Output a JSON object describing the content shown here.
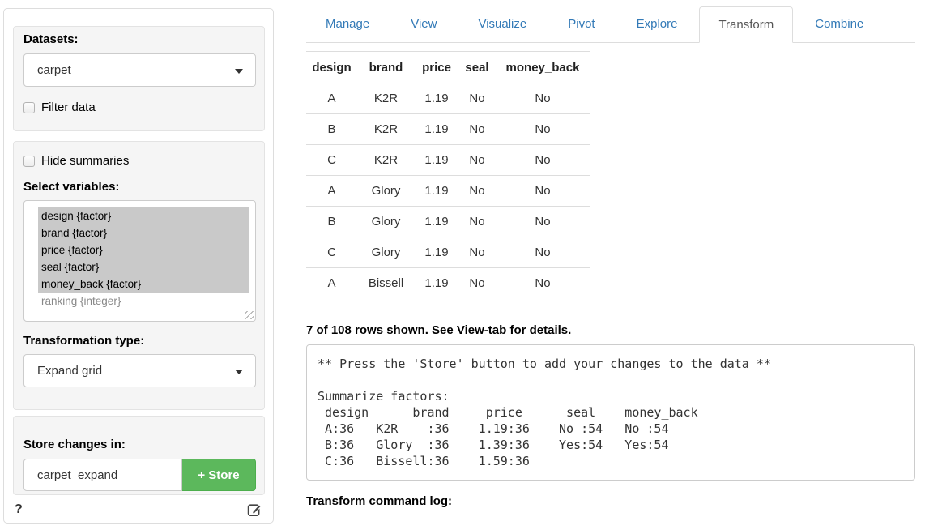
{
  "colors": {
    "accent": "#337ab7",
    "active_tab_text": "#555555",
    "success_bg": "#5cb85c",
    "success_border": "#4cae4c",
    "selection_bg": "#c9c9c9",
    "well_bg": "#f5f5f5"
  },
  "sidebar": {
    "datasets_label": "Datasets:",
    "dataset_value": "carpet",
    "filter_checkbox_label": "Filter data",
    "hide_summaries_label": "Hide summaries",
    "select_variables_label": "Select variables:",
    "variables": [
      {
        "label": "design {factor}",
        "selected": true
      },
      {
        "label": "brand {factor}",
        "selected": true
      },
      {
        "label": "price {factor}",
        "selected": true
      },
      {
        "label": "seal {factor}",
        "selected": true
      },
      {
        "label": "money_back {factor}",
        "selected": true
      },
      {
        "label": "ranking {integer}",
        "selected": false
      }
    ],
    "transformation_label": "Transformation type:",
    "transformation_value": "Expand grid",
    "store_label": "Store changes in:",
    "store_input_value": "carpet_expand",
    "store_button_plus": "+",
    "store_button_label": "Store",
    "help_label": "?"
  },
  "tabs": [
    {
      "label": "Manage",
      "active": false
    },
    {
      "label": "View",
      "active": false
    },
    {
      "label": "Visualize",
      "active": false
    },
    {
      "label": "Pivot",
      "active": false
    },
    {
      "label": "Explore",
      "active": false
    },
    {
      "label": "Transform",
      "active": true
    },
    {
      "label": "Combine",
      "active": false
    }
  ],
  "main": {
    "table": {
      "columns": [
        "design",
        "brand",
        "price",
        "seal",
        "money_back"
      ],
      "rows": [
        [
          "A",
          "K2R",
          "1.19",
          "No",
          "No"
        ],
        [
          "B",
          "K2R",
          "1.19",
          "No",
          "No"
        ],
        [
          "C",
          "K2R",
          "1.19",
          "No",
          "No"
        ],
        [
          "A",
          "Glory",
          "1.19",
          "No",
          "No"
        ],
        [
          "B",
          "Glory",
          "1.19",
          "No",
          "No"
        ],
        [
          "C",
          "Glory",
          "1.19",
          "No",
          "No"
        ],
        [
          "A",
          "Bissell",
          "1.19",
          "No",
          "No"
        ]
      ]
    },
    "rows_note": "7 of 108 rows shown. See View-tab for details.",
    "summary_text": "** Press the 'Store' button to add your changes to the data **\n\nSummarize factors:\n design      brand     price      seal    money_back\n A:36   K2R    :36    1.19:36    No :54   No :54\n B:36   Glory  :36    1.39:36    Yes:54   Yes:54\n C:36   Bissell:36    1.59:36",
    "command_log_label": "Transform command log:"
  }
}
